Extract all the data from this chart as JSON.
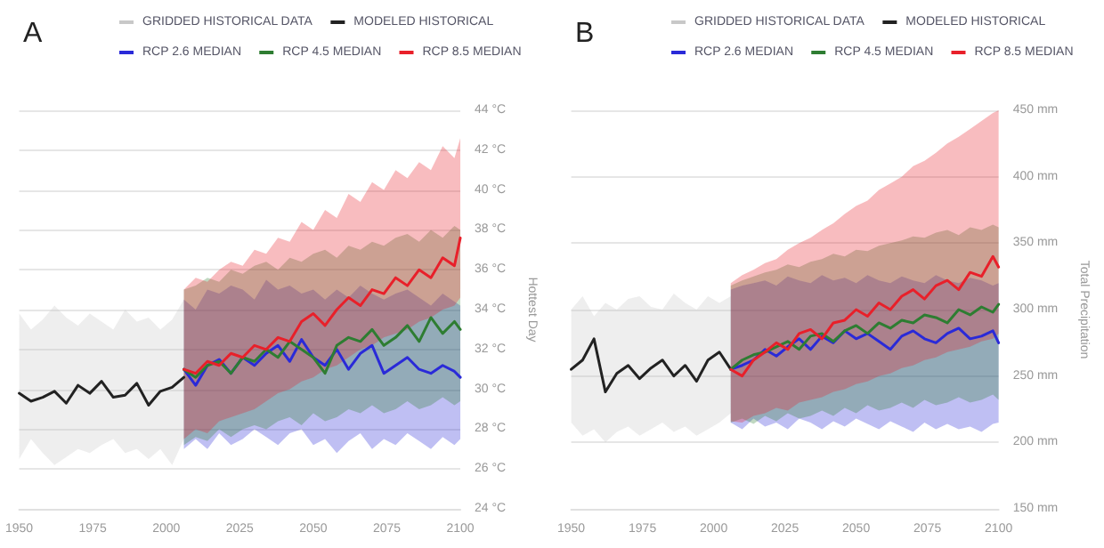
{
  "chart_data": [
    {
      "type": "line",
      "title": "A",
      "ylabel": "Hottest Day",
      "legend": "top",
      "grid": "y",
      "marker": "none",
      "line_style": "solid",
      "xlim": [
        1950,
        2100
      ],
      "xticks": [
        1950,
        1975,
        2000,
        2025,
        2050,
        2075,
        2100
      ],
      "ylim": [
        24,
        44
      ],
      "yticks": [
        {
          "value": 24,
          "label": "24 °C"
        },
        {
          "value": 26,
          "label": "26 °C"
        },
        {
          "value": 28,
          "label": "28 °C"
        },
        {
          "value": 30,
          "label": "30 °C"
        },
        {
          "value": 32,
          "label": "32 °C"
        },
        {
          "value": 34,
          "label": "34 °C"
        },
        {
          "value": 36,
          "label": "36 °C"
        },
        {
          "value": 38,
          "label": "38 °C"
        },
        {
          "value": 40,
          "label": "40 °C"
        },
        {
          "value": 42,
          "label": "42 °C"
        },
        {
          "value": 44,
          "label": "44 °C"
        }
      ],
      "series": [
        {
          "name": "GRIDDED HISTORICAL DATA",
          "color": "#c8c8c8",
          "x": [
            1950,
            1954,
            1958,
            1962,
            1966,
            1970,
            1974,
            1978,
            1982,
            1986,
            1990,
            1994,
            1998,
            2002,
            2006
          ],
          "values": [
            null,
            null,
            null,
            null,
            null,
            null,
            null,
            null,
            null,
            null,
            null,
            null,
            null,
            null,
            null
          ],
          "lower": [
            26.5,
            27.5,
            26.8,
            26.2,
            26.6,
            27.0,
            26.8,
            27.2,
            27.5,
            26.8,
            27.0,
            26.5,
            27.0,
            26.2,
            27.5
          ],
          "upper": [
            33.8,
            33.0,
            33.5,
            34.2,
            33.6,
            33.2,
            33.8,
            33.4,
            33.0,
            34.0,
            33.4,
            33.6,
            33.0,
            33.5,
            34.5
          ]
        },
        {
          "name": "MODELED HISTORICAL",
          "color": "#222222",
          "x": [
            1950,
            1954,
            1958,
            1962,
            1966,
            1970,
            1974,
            1978,
            1982,
            1986,
            1990,
            1994,
            1998,
            2002,
            2006
          ],
          "values": [
            29.8,
            29.4,
            29.6,
            29.9,
            29.3,
            30.2,
            29.8,
            30.4,
            29.6,
            29.7,
            30.3,
            29.2,
            29.9,
            30.1,
            30.6
          ]
        },
        {
          "name": "RCP 2.6 MEDIAN",
          "color": "#2a2ad8",
          "x": [
            2006,
            2010,
            2014,
            2018,
            2022,
            2026,
            2030,
            2034,
            2038,
            2042,
            2046,
            2050,
            2054,
            2058,
            2062,
            2066,
            2070,
            2074,
            2078,
            2082,
            2086,
            2090,
            2094,
            2098,
            2100
          ],
          "values": [
            31.0,
            30.2,
            31.2,
            31.5,
            30.8,
            31.6,
            31.2,
            31.8,
            32.2,
            31.4,
            32.5,
            31.6,
            31.2,
            32.0,
            31.0,
            31.8,
            32.2,
            30.8,
            31.2,
            31.6,
            31.0,
            30.8,
            31.2,
            30.9,
            30.6
          ],
          "lower": [
            27,
            27.5,
            27,
            27.8,
            27.2,
            27.5,
            28,
            27.6,
            27.2,
            27.8,
            28,
            27.2,
            27.5,
            26.8,
            27.4,
            27.8,
            27,
            27.5,
            27.2,
            27.8,
            27.4,
            27,
            27.6,
            27.2,
            27.5
          ],
          "upper": [
            34.5,
            34,
            35,
            34.8,
            35.2,
            35,
            34.5,
            35.5,
            35,
            35.2,
            34.8,
            35,
            34.5,
            35,
            34.6,
            35.2,
            34.8,
            34.5,
            34.8,
            35,
            34.6,
            34.2,
            34.8,
            34.4,
            34.2
          ]
        },
        {
          "name": "RCP 4.5 MEDIAN",
          "color": "#2e7d32",
          "x": [
            2006,
            2010,
            2014,
            2018,
            2022,
            2026,
            2030,
            2034,
            2038,
            2042,
            2046,
            2050,
            2054,
            2058,
            2062,
            2066,
            2070,
            2074,
            2078,
            2082,
            2086,
            2090,
            2094,
            2098,
            2100
          ],
          "values": [
            31.0,
            30.6,
            31.2,
            31.4,
            30.8,
            31.6,
            31.4,
            32.0,
            31.6,
            32.4,
            32.0,
            31.6,
            30.8,
            32.2,
            32.6,
            32.4,
            33.0,
            32.2,
            32.6,
            33.2,
            32.4,
            33.6,
            32.8,
            33.4,
            33.0
          ],
          "lower": [
            27.2,
            27.6,
            27.4,
            28,
            27.6,
            28,
            28.2,
            28,
            28.4,
            28.6,
            28.2,
            28.8,
            28.4,
            28.6,
            29,
            28.8,
            29.2,
            28.8,
            29,
            29.4,
            29,
            29.2,
            29.6,
            29.2,
            29.4
          ],
          "upper": [
            35,
            35.2,
            35.6,
            35.4,
            36,
            35.8,
            36.2,
            36.4,
            36,
            36.6,
            36.4,
            36.8,
            37,
            36.6,
            37.2,
            37,
            37.4,
            37.2,
            37.6,
            37.8,
            37.4,
            38,
            37.6,
            38.2,
            38
          ]
        },
        {
          "name": "RCP 8.5 MEDIAN",
          "color": "#e8202a",
          "x": [
            2006,
            2010,
            2014,
            2018,
            2022,
            2026,
            2030,
            2034,
            2038,
            2042,
            2046,
            2050,
            2054,
            2058,
            2062,
            2066,
            2070,
            2074,
            2078,
            2082,
            2086,
            2090,
            2094,
            2098,
            2100
          ],
          "values": [
            31.0,
            30.8,
            31.4,
            31.2,
            31.8,
            31.6,
            32.2,
            32.0,
            32.6,
            32.4,
            33.4,
            33.8,
            33.2,
            34.0,
            34.6,
            34.2,
            35.0,
            34.8,
            35.6,
            35.2,
            36.0,
            35.6,
            36.6,
            36.2,
            37.6
          ],
          "lower": [
            27.5,
            28,
            27.8,
            28.4,
            28.6,
            28.8,
            29,
            29.4,
            29.8,
            30,
            30.4,
            30.6,
            31,
            31.2,
            31.6,
            32,
            32.2,
            32.6,
            32.8,
            33,
            33.4,
            33.6,
            34,
            34.2,
            34.6
          ],
          "upper": [
            35,
            35.6,
            35.4,
            36,
            36.4,
            36.2,
            37,
            36.8,
            37.6,
            37.4,
            38.4,
            38,
            39,
            38.6,
            39.8,
            39.4,
            40.4,
            40,
            41,
            40.6,
            41.4,
            41,
            42.2,
            41.6,
            42.6
          ]
        }
      ]
    },
    {
      "type": "line",
      "title": "B",
      "ylabel": "Total Precipitation",
      "legend": "top",
      "grid": "y",
      "marker": "none",
      "line_style": "solid",
      "xlim": [
        1950,
        2100
      ],
      "xticks": [
        1950,
        1975,
        2000,
        2025,
        2050,
        2075,
        2100
      ],
      "ylim": [
        150,
        450
      ],
      "yticks": [
        {
          "value": 150,
          "label": "150 mm"
        },
        {
          "value": 200,
          "label": "200 mm"
        },
        {
          "value": 250,
          "label": "250 mm"
        },
        {
          "value": 300,
          "label": "300 mm"
        },
        {
          "value": 350,
          "label": "350 mm"
        },
        {
          "value": 400,
          "label": "400 mm"
        },
        {
          "value": 450,
          "label": "450 mm"
        }
      ],
      "series": [
        {
          "name": "GRIDDED HISTORICAL DATA",
          "color": "#c8c8c8",
          "x": [
            1950,
            1954,
            1958,
            1962,
            1966,
            1970,
            1974,
            1978,
            1982,
            1986,
            1990,
            1994,
            1998,
            2002,
            2006
          ],
          "values": [
            null,
            null,
            null,
            null,
            null,
            null,
            null,
            null,
            null,
            null,
            null,
            null,
            null,
            null,
            null
          ],
          "lower": [
            215,
            205,
            210,
            200,
            208,
            212,
            205,
            210,
            215,
            208,
            212,
            205,
            210,
            215,
            222
          ],
          "upper": [
            300,
            310,
            295,
            305,
            300,
            308,
            310,
            302,
            300,
            312,
            305,
            300,
            310,
            305,
            310
          ]
        },
        {
          "name": "MODELED HISTORICAL",
          "color": "#222222",
          "x": [
            1950,
            1954,
            1958,
            1962,
            1966,
            1970,
            1974,
            1978,
            1982,
            1986,
            1990,
            1994,
            1998,
            2002,
            2006
          ],
          "values": [
            255,
            262,
            278,
            238,
            252,
            258,
            248,
            256,
            262,
            250,
            258,
            246,
            262,
            268,
            255
          ]
        },
        {
          "name": "RCP 2.6 MEDIAN",
          "color": "#2a2ad8",
          "x": [
            2006,
            2010,
            2014,
            2018,
            2022,
            2026,
            2030,
            2034,
            2038,
            2042,
            2046,
            2050,
            2054,
            2058,
            2062,
            2066,
            2070,
            2074,
            2078,
            2082,
            2086,
            2090,
            2094,
            2098,
            2100
          ],
          "values": [
            255,
            258,
            262,
            270,
            265,
            272,
            278,
            270,
            280,
            275,
            284,
            278,
            282,
            276,
            270,
            280,
            284,
            278,
            275,
            282,
            286,
            278,
            280,
            284,
            275
          ],
          "lower": [
            215,
            210,
            218,
            212,
            215,
            210,
            218,
            215,
            210,
            216,
            212,
            218,
            214,
            210,
            216,
            212,
            208,
            215,
            210,
            214,
            210,
            212,
            208,
            214,
            215
          ],
          "upper": [
            315,
            318,
            320,
            322,
            318,
            325,
            322,
            320,
            326,
            322,
            324,
            320,
            326,
            322,
            320,
            325,
            322,
            320,
            326,
            322,
            320,
            324,
            322,
            318,
            320
          ]
        },
        {
          "name": "RCP 4.5 MEDIAN",
          "color": "#2e7d32",
          "x": [
            2006,
            2010,
            2014,
            2018,
            2022,
            2026,
            2030,
            2034,
            2038,
            2042,
            2046,
            2050,
            2054,
            2058,
            2062,
            2066,
            2070,
            2074,
            2078,
            2082,
            2086,
            2090,
            2094,
            2098,
            2100
          ],
          "values": [
            255,
            262,
            266,
            268,
            272,
            276,
            270,
            280,
            282,
            276,
            284,
            288,
            282,
            290,
            286,
            292,
            290,
            296,
            294,
            290,
            300,
            296,
            302,
            298,
            304
          ],
          "lower": [
            215,
            218,
            214,
            220,
            216,
            222,
            218,
            220,
            224,
            220,
            226,
            222,
            228,
            224,
            226,
            230,
            226,
            232,
            228,
            230,
            234,
            230,
            232,
            236,
            232
          ],
          "upper": [
            318,
            322,
            325,
            328,
            330,
            334,
            332,
            336,
            338,
            342,
            340,
            345,
            344,
            348,
            350,
            352,
            355,
            354,
            358,
            360,
            356,
            362,
            360,
            364,
            362
          ]
        },
        {
          "name": "RCP 8.5 MEDIAN",
          "color": "#e8202a",
          "x": [
            2006,
            2010,
            2014,
            2018,
            2022,
            2026,
            2030,
            2034,
            2038,
            2042,
            2046,
            2050,
            2054,
            2058,
            2062,
            2066,
            2070,
            2074,
            2078,
            2082,
            2086,
            2090,
            2094,
            2098,
            2100
          ],
          "values": [
            255,
            250,
            262,
            268,
            275,
            270,
            282,
            285,
            278,
            290,
            292,
            300,
            295,
            305,
            300,
            310,
            315,
            308,
            318,
            322,
            315,
            328,
            325,
            340,
            332
          ],
          "lower": [
            216,
            215,
            220,
            222,
            226,
            224,
            230,
            232,
            234,
            238,
            240,
            244,
            246,
            250,
            252,
            256,
            258,
            262,
            264,
            268,
            270,
            272,
            276,
            278,
            282
          ],
          "upper": [
            320,
            326,
            330,
            335,
            338,
            345,
            350,
            354,
            360,
            365,
            372,
            378,
            382,
            390,
            395,
            400,
            408,
            412,
            418,
            425,
            430,
            436,
            442,
            448,
            450
          ]
        }
      ]
    }
  ]
}
